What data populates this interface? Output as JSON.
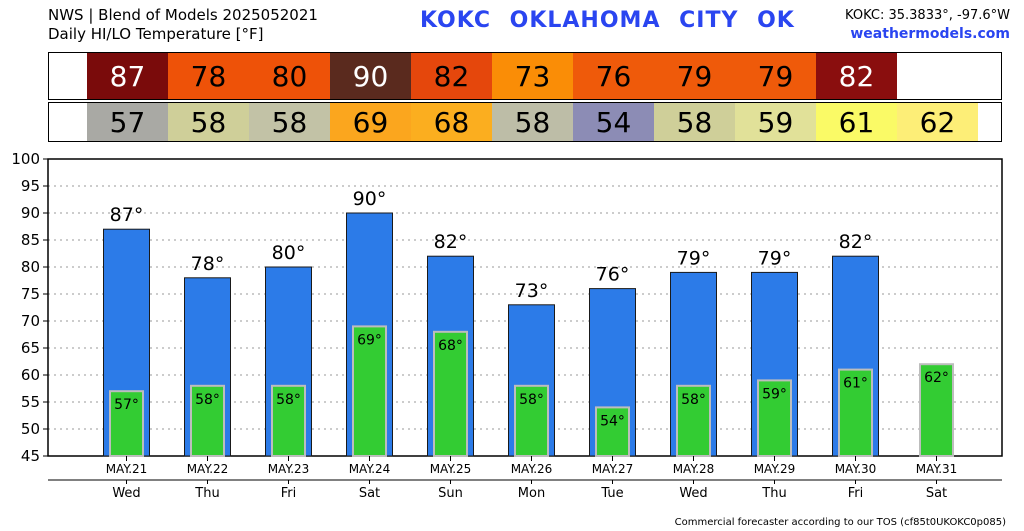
{
  "header": {
    "line1": "NWS | Blend of Models 2025052021",
    "line2": "Daily HI/LO Temperature [°F]",
    "station": "KOKC",
    "city": "OKLAHOMA CITY",
    "state": "OK",
    "coords": "KOKC: 35.3833°, -97.6°W",
    "site": "weathermodels.com"
  },
  "footer": "Commercial forecaster according to our TOS (cf85t0UKOKC0p085)",
  "colors": {
    "bar_high": "#2c7be8",
    "bar_low": "#33cc33",
    "hi_cells": [
      "#7a0b0b",
      "#ee5208",
      "#ee5208",
      "#5a2a1e",
      "#e5470c",
      "#fa8d06",
      "#ef5a0a",
      "#ef5a0a",
      "#ef5a0a",
      "#8a0e0e"
    ],
    "lo_cells": [
      "#a9a9a4",
      "#cfcf99",
      "#c2c2a6",
      "#fba61e",
      "#fbae1f",
      "#bdbda7",
      "#8c8cb5",
      "#cfcf99",
      "#e1e199",
      "#fafa66",
      "#fdee77"
    ]
  },
  "chart_data": {
    "type": "bar",
    "title": "Daily HI/LO Temperature [°F]",
    "categories": [
      "MAY.21",
      "MAY.22",
      "MAY.23",
      "MAY.24",
      "MAY.25",
      "MAY.26",
      "MAY.27",
      "MAY.28",
      "MAY.29",
      "MAY.30",
      "MAY.31"
    ],
    "weekdays": [
      "Wed",
      "Thu",
      "Fri",
      "Sat",
      "Sun",
      "Mon",
      "Tue",
      "Wed",
      "Thu",
      "Fri",
      "Sat"
    ],
    "series": [
      {
        "name": "HI",
        "values": [
          87,
          78,
          80,
          90,
          82,
          73,
          76,
          79,
          79,
          82,
          null
        ]
      },
      {
        "name": "LO",
        "values": [
          57,
          58,
          58,
          69,
          68,
          58,
          54,
          58,
          59,
          61,
          62
        ]
      }
    ],
    "ylim": [
      45,
      100
    ],
    "yticks": [
      45,
      50,
      55,
      60,
      65,
      70,
      75,
      80,
      85,
      90,
      95,
      100
    ],
    "grid": true,
    "unit_suffix": "°"
  }
}
